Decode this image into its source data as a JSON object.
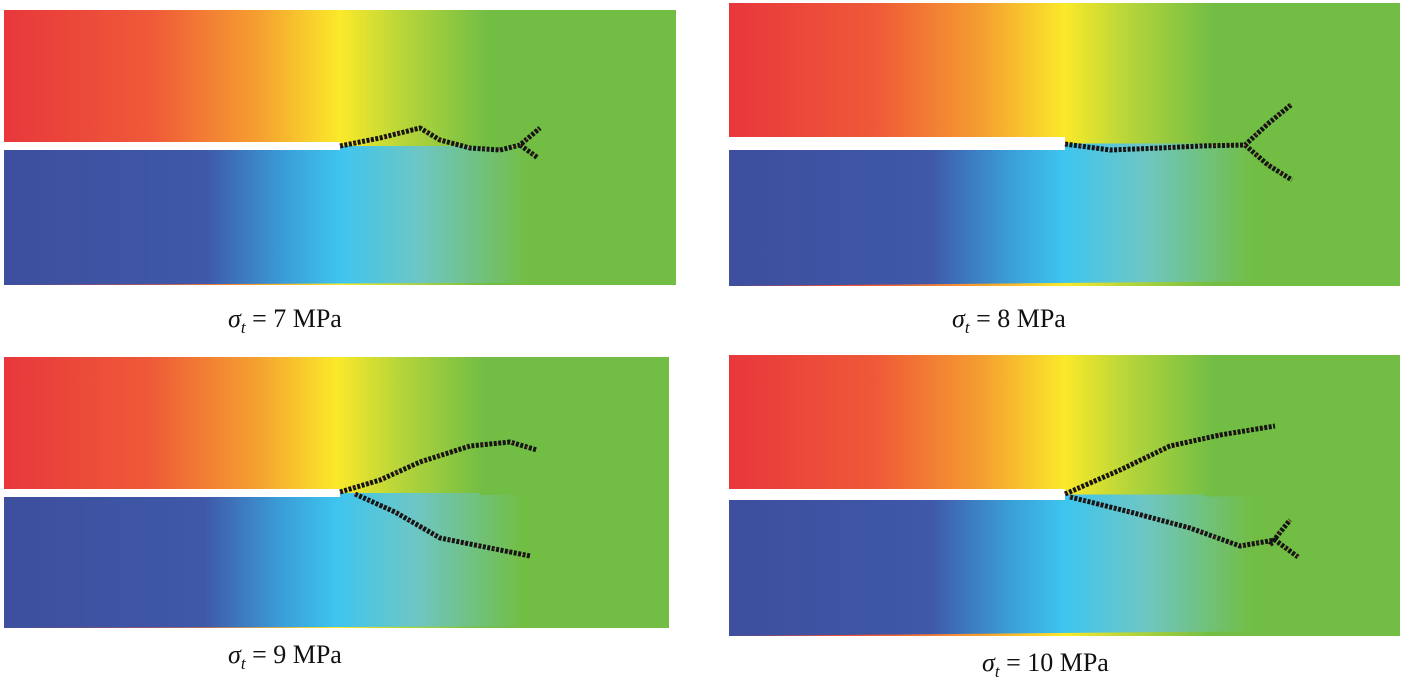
{
  "figure": {
    "panels": [
      {
        "symbol": "σ",
        "subscript": "t",
        "value_text": "= 7 MPa",
        "branches": 1
      },
      {
        "symbol": "σ",
        "subscript": "t",
        "value_text": "= 8 MPa",
        "branches": 2
      },
      {
        "symbol": "σ",
        "subscript": "t",
        "value_text": "= 9 MPa",
        "branches": 2
      },
      {
        "symbol": "σ",
        "subscript": "t",
        "value_text": "= 10 MPa",
        "branches": 2
      }
    ],
    "colors": {
      "red": "#e8373c",
      "orange": "#f5a030",
      "yellow": "#fbe92a",
      "green": "#72be45",
      "blue": "#3d4f9e",
      "light_blue": "#3ec5ef",
      "crack": "#151515",
      "crack_highlight": "#e0203a"
    }
  }
}
